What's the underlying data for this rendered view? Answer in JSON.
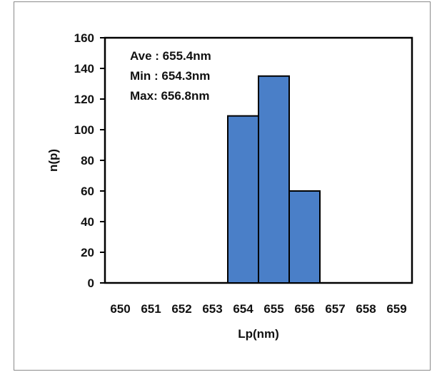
{
  "chart_data": {
    "type": "bar",
    "categories": [
      "650",
      "651",
      "652",
      "653",
      "654",
      "655",
      "656",
      "657",
      "658",
      "659"
    ],
    "values": [
      0,
      0,
      0,
      0,
      109,
      135,
      60,
      0,
      0,
      0
    ],
    "xlabel": "Lp(nm)",
    "ylabel": "n(p)",
    "ylim": [
      0,
      160
    ],
    "yticks": [
      "0",
      "20",
      "40",
      "60",
      "80",
      "100",
      "120",
      "140",
      "160"
    ],
    "annotations": [
      "Ave : 655.4nm",
      "Min : 654.3nm",
      "Max: 656.8nm"
    ],
    "bar_color": "#4a7fc8",
    "grid": false,
    "legend": "none"
  }
}
